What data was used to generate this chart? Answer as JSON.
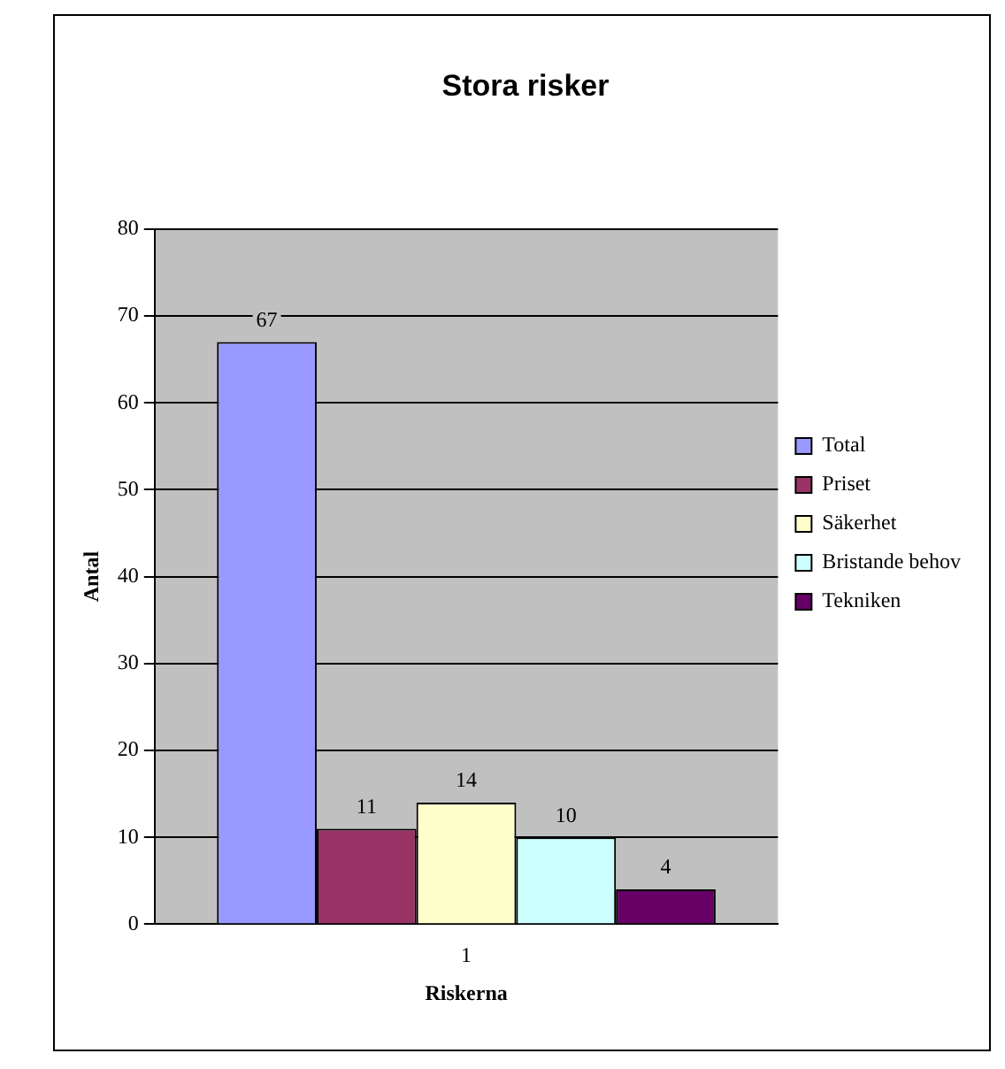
{
  "chart_data": {
    "type": "bar",
    "title": "Stora risker",
    "xlabel": "Riskerna",
    "ylabel": "Antal",
    "categories": [
      "1"
    ],
    "series": [
      {
        "name": "Total",
        "color": "#9999ff",
        "values": [
          67
        ]
      },
      {
        "name": "Priset",
        "color": "#993366",
        "values": [
          11
        ]
      },
      {
        "name": "Säkerhet",
        "color": "#ffffcc",
        "values": [
          14
        ]
      },
      {
        "name": "Bristande behov",
        "color": "#ccffff",
        "values": [
          10
        ]
      },
      {
        "name": "Tekniken",
        "color": "#660066",
        "values": [
          4
        ]
      }
    ],
    "ylim": [
      0,
      80
    ],
    "yticks": [
      0,
      10,
      20,
      30,
      40,
      50,
      60,
      70,
      80
    ],
    "grid": "y",
    "legend": "right",
    "data_labels": true
  }
}
